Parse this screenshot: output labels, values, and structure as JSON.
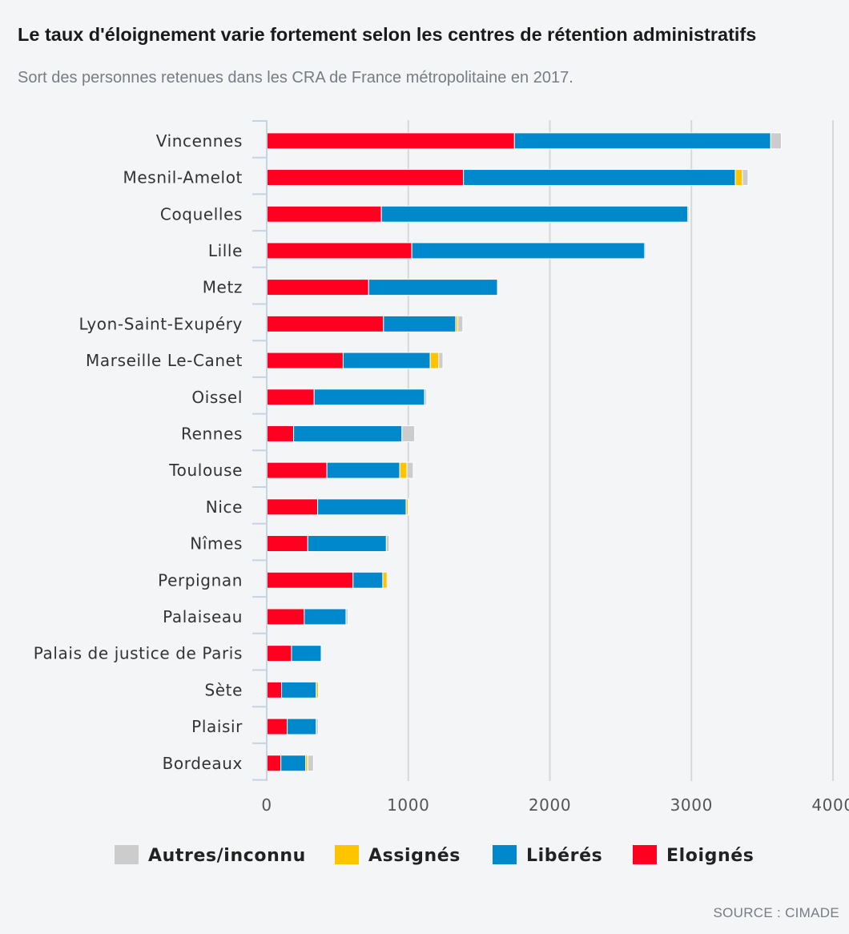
{
  "header": {
    "title": "Le taux d'éloignement varie fortement selon les centres de rétention administratifs",
    "subtitle": "Sort des personnes retenues dans les CRA de France métropolitaine en 2017."
  },
  "footer": {
    "source": "SOURCE : CIMADE"
  },
  "chart_data": {
    "type": "bar",
    "orientation": "horizontal",
    "stacked": true,
    "title": "Le taux d'éloignement varie fortement selon les centres de rétention administratifs",
    "subtitle": "Sort des personnes retenues dans les CRA de France métropolitaine en 2017.",
    "xlabel": "",
    "ylabel": "",
    "xlim": [
      0,
      4000
    ],
    "xticks": [
      "0",
      "1000",
      "2000",
      "3000",
      "4000"
    ],
    "grid": true,
    "legend_position": "bottom",
    "categories": [
      "Vincennes",
      "Mesnil-Amelot",
      "Coquelles",
      "Lille",
      "Metz",
      "Lyon-Saint-Exupéry",
      "Marseille Le-Canet",
      "Oissel",
      "Rennes",
      "Toulouse",
      "Nice",
      "Nîmes",
      "Perpignan",
      "Palaiseau",
      "Palais de justice de Paris",
      "Sète",
      "Plaisir",
      "Bordeaux"
    ],
    "series": [
      {
        "name": "Eloignés",
        "color": "#ff0021",
        "values": [
          1750,
          1390,
          810,
          1025,
          720,
          825,
          540,
          335,
          190,
          425,
          360,
          290,
          610,
          265,
          175,
          105,
          145,
          100
        ]
      },
      {
        "name": "Libérés",
        "color": "#0088cc",
        "values": [
          1810,
          1920,
          2165,
          1645,
          910,
          510,
          615,
          780,
          765,
          515,
          625,
          555,
          210,
          295,
          210,
          245,
          205,
          175
        ]
      },
      {
        "name": "Assignés",
        "color": "#ffc400",
        "values": [
          0,
          50,
          0,
          0,
          0,
          15,
          60,
          0,
          0,
          50,
          15,
          0,
          30,
          0,
          0,
          15,
          0,
          15
        ]
      },
      {
        "name": "Autres/inconnu",
        "color": "#cccccc",
        "values": [
          75,
          40,
          10,
          10,
          5,
          35,
          30,
          15,
          90,
          45,
          5,
          20,
          0,
          15,
          5,
          5,
          15,
          40
        ]
      }
    ],
    "legend": [
      "Autres/inconnu",
      "Assignés",
      "Libérés",
      "Eloignés"
    ]
  }
}
